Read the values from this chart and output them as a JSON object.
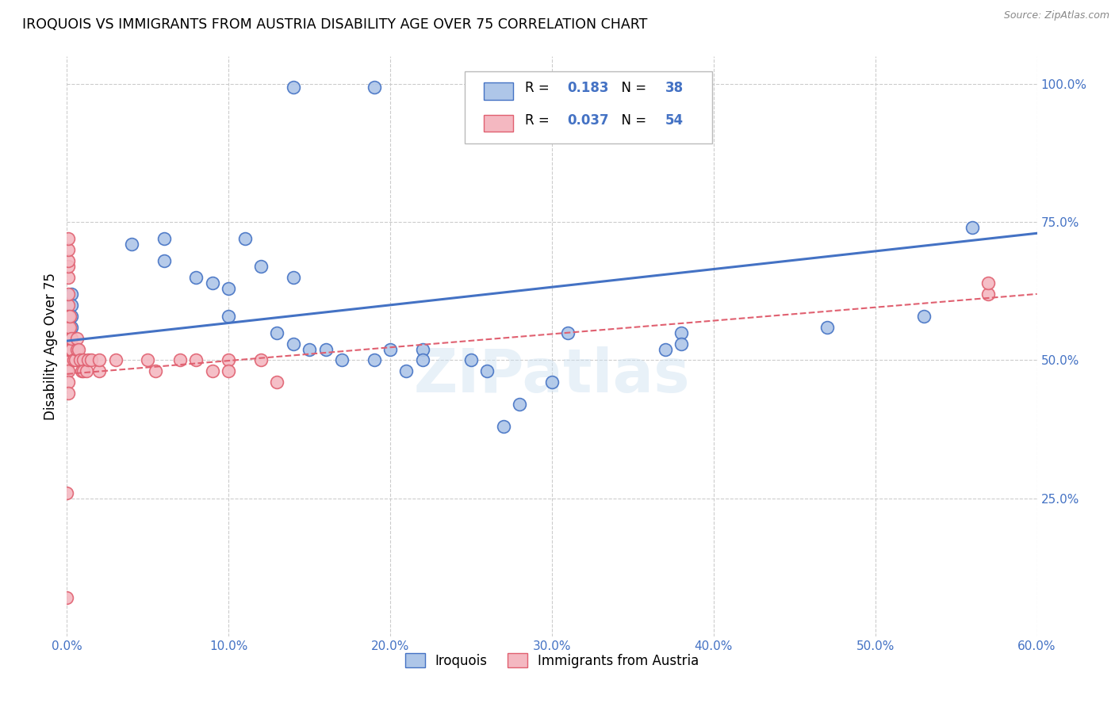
{
  "title": "IROQUOIS VS IMMIGRANTS FROM AUSTRIA DISABILITY AGE OVER 75 CORRELATION CHART",
  "source": "Source: ZipAtlas.com",
  "ylabel": "Disability Age Over 75",
  "xlim": [
    0.0,
    0.6
  ],
  "ylim": [
    0.0,
    1.05
  ],
  "xtick_labels": [
    "0.0%",
    "10.0%",
    "20.0%",
    "30.0%",
    "40.0%",
    "50.0%",
    "60.0%"
  ],
  "xtick_vals": [
    0.0,
    0.1,
    0.2,
    0.3,
    0.4,
    0.5,
    0.6
  ],
  "ytick_labels": [
    "25.0%",
    "50.0%",
    "75.0%",
    "100.0%"
  ],
  "ytick_vals": [
    0.25,
    0.5,
    0.75,
    1.0
  ],
  "legend_labels": [
    "Iroquois",
    "Immigrants from Austria"
  ],
  "R_iroquois": "0.183",
  "N_iroquois": "38",
  "R_austria": "0.037",
  "N_austria": "54",
  "color_iroquois": "#aec6e8",
  "color_austria": "#f4b8c1",
  "line_color_iroquois": "#4472c4",
  "line_color_austria": "#e06070",
  "watermark": "ZIPatlas",
  "iroquois_x": [
    0.14,
    0.19,
    0.003,
    0.003,
    0.003,
    0.003,
    0.04,
    0.06,
    0.06,
    0.08,
    0.09,
    0.1,
    0.1,
    0.11,
    0.12,
    0.13,
    0.14,
    0.14,
    0.15,
    0.16,
    0.17,
    0.19,
    0.2,
    0.21,
    0.22,
    0.22,
    0.25,
    0.26,
    0.27,
    0.28,
    0.3,
    0.31,
    0.37,
    0.38,
    0.38,
    0.47,
    0.53,
    0.56
  ],
  "iroquois_y": [
    0.995,
    0.995,
    0.62,
    0.6,
    0.58,
    0.56,
    0.71,
    0.72,
    0.68,
    0.65,
    0.64,
    0.63,
    0.58,
    0.72,
    0.67,
    0.55,
    0.53,
    0.65,
    0.52,
    0.52,
    0.5,
    0.5,
    0.52,
    0.48,
    0.52,
    0.5,
    0.5,
    0.48,
    0.38,
    0.42,
    0.46,
    0.55,
    0.52,
    0.55,
    0.53,
    0.56,
    0.58,
    0.74
  ],
  "austria_x": [
    0.0,
    0.0,
    0.0,
    0.0,
    0.001,
    0.001,
    0.001,
    0.001,
    0.001,
    0.001,
    0.001,
    0.001,
    0.001,
    0.001,
    0.001,
    0.001,
    0.001,
    0.001,
    0.001,
    0.001,
    0.001,
    0.001,
    0.002,
    0.002,
    0.002,
    0.002,
    0.003,
    0.003,
    0.004,
    0.005,
    0.006,
    0.006,
    0.007,
    0.008,
    0.009,
    0.01,
    0.01,
    0.012,
    0.013,
    0.015,
    0.02,
    0.02,
    0.03,
    0.05,
    0.055,
    0.07,
    0.08,
    0.09,
    0.1,
    0.1,
    0.12,
    0.13,
    0.57,
    0.57
  ],
  "austria_y": [
    0.07,
    0.26,
    0.48,
    0.55,
    0.6,
    0.62,
    0.65,
    0.67,
    0.68,
    0.7,
    0.72,
    0.55,
    0.53,
    0.51,
    0.5,
    0.48,
    0.46,
    0.44,
    0.52,
    0.54,
    0.56,
    0.58,
    0.52,
    0.54,
    0.56,
    0.58,
    0.52,
    0.54,
    0.5,
    0.5,
    0.52,
    0.54,
    0.52,
    0.5,
    0.48,
    0.5,
    0.48,
    0.48,
    0.5,
    0.5,
    0.48,
    0.5,
    0.5,
    0.5,
    0.48,
    0.5,
    0.5,
    0.48,
    0.5,
    0.48,
    0.5,
    0.46,
    0.62,
    0.64
  ]
}
